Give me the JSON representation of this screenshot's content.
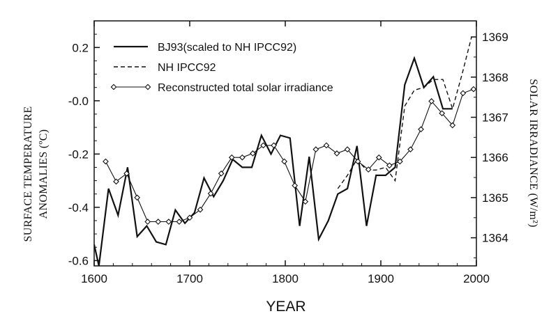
{
  "chart_data": {
    "type": "line",
    "xlabel": "YEAR",
    "ylabel_left": [
      "SURFACE TEMPERATURE",
      "ANOMALIES (ºC)"
    ],
    "ylabel_right": "SOLAR IRRADIANCE (W/m²)",
    "xlim": [
      1600,
      2000
    ],
    "ylim_left": [
      -0.62,
      0.3
    ],
    "ylim_right": [
      1363.3,
      1369.4
    ],
    "x_ticks": [
      1600,
      1700,
      1800,
      1900,
      2000
    ],
    "y_left_ticks": [
      0.2,
      -0.0,
      -0.2,
      -0.4,
      -0.6
    ],
    "y_left_tick_labels": [
      "0.2",
      "-0.0",
      "-0.2",
      "-0.4",
      "-0.6"
    ],
    "y_right_ticks": [
      1364,
      1365,
      1366,
      1367,
      1368,
      1369
    ],
    "y_right_tick_labels": [
      "1364",
      "1365",
      "1366",
      "1367",
      "1368",
      "1369"
    ],
    "legend_position": "top-left",
    "series": [
      {
        "name": "BJ93(scaled to NH IPCC92)",
        "style": "solid",
        "axis": "left",
        "x": [
          1600,
          1605,
          1615,
          1625,
          1635,
          1645,
          1655,
          1665,
          1675,
          1685,
          1695,
          1705,
          1715,
          1725,
          1735,
          1745,
          1755,
          1765,
          1775,
          1785,
          1795,
          1805,
          1815,
          1825,
          1835,
          1845,
          1855,
          1865,
          1875,
          1885,
          1895,
          1905,
          1915,
          1925,
          1935,
          1945,
          1955,
          1965,
          1975
        ],
        "y": [
          -0.54,
          -0.62,
          -0.33,
          -0.43,
          -0.25,
          -0.51,
          -0.47,
          -0.53,
          -0.54,
          -0.41,
          -0.46,
          -0.42,
          -0.29,
          -0.36,
          -0.3,
          -0.22,
          -0.25,
          -0.25,
          -0.13,
          -0.2,
          -0.13,
          -0.14,
          -0.47,
          -0.21,
          -0.52,
          -0.45,
          -0.35,
          -0.33,
          -0.17,
          -0.47,
          -0.28,
          -0.28,
          -0.25,
          0.06,
          0.16,
          0.05,
          0.09,
          -0.03,
          -0.03
        ]
      },
      {
        "name": "NH IPCC92",
        "style": "dashed",
        "axis": "left",
        "x": [
          1855,
          1865,
          1875,
          1885,
          1895,
          1905,
          1915,
          1925,
          1935,
          1945,
          1955,
          1965,
          1975,
          1985,
          1995
        ],
        "y": [
          -0.33,
          -0.28,
          -0.22,
          -0.26,
          -0.26,
          -0.25,
          -0.3,
          -0.02,
          0.04,
          0.05,
          0.08,
          0.08,
          -0.03,
          0.1,
          0.24
        ]
      },
      {
        "name": "Reconstructed total solar irradiance",
        "style": "line-diamond",
        "axis": "right",
        "x": [
          1612,
          1623,
          1634,
          1645,
          1656,
          1667,
          1678,
          1689,
          1700,
          1711,
          1722,
          1733,
          1744,
          1755,
          1766,
          1777,
          1788,
          1799,
          1810,
          1821,
          1832,
          1843,
          1854,
          1865,
          1876,
          1887,
          1898,
          1909,
          1920,
          1931,
          1942,
          1953,
          1964,
          1975,
          1986,
          1997
        ],
        "y": [
          1365.9,
          1365.4,
          1365.6,
          1365.0,
          1364.4,
          1364.4,
          1364.4,
          1364.4,
          1364.5,
          1364.7,
          1365.1,
          1365.6,
          1366.0,
          1366.0,
          1366.1,
          1366.3,
          1366.3,
          1365.9,
          1365.3,
          1364.9,
          1366.2,
          1366.3,
          1366.1,
          1366.2,
          1365.9,
          1365.7,
          1366.0,
          1365.8,
          1365.9,
          1366.2,
          1366.7,
          1367.4,
          1367.1,
          1366.8,
          1367.6,
          1367.7
        ]
      }
    ]
  }
}
